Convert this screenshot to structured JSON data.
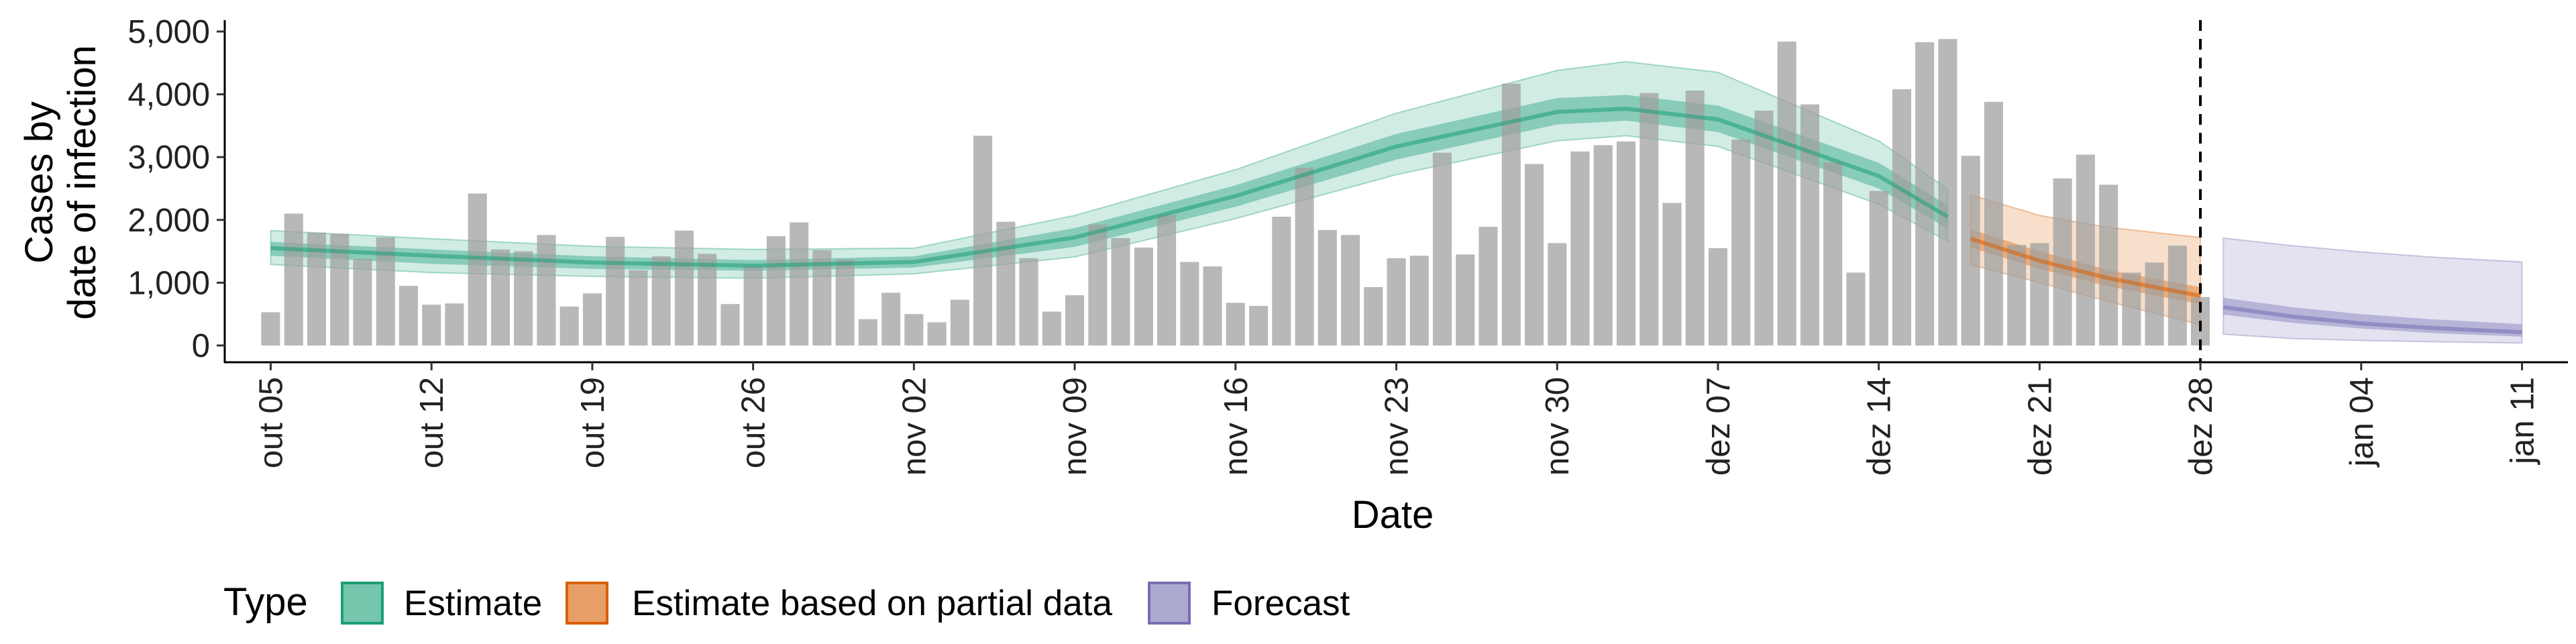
{
  "chart_data": {
    "type": "bar",
    "ylabel_lines": [
      "Cases by",
      "date of infection"
    ],
    "xlabel": "Date",
    "ylim": [
      0,
      5000
    ],
    "yticks": [
      0,
      1000,
      2000,
      3000,
      4000,
      5000
    ],
    "ytick_labels": [
      "0",
      "1,000",
      "2,000",
      "3,000",
      "4,000",
      "5,000"
    ],
    "xlim": [
      "2020-10-03",
      "2021-01-13"
    ],
    "xticks": [
      "2020-10-05",
      "2020-10-12",
      "2020-10-19",
      "2020-10-26",
      "2020-11-02",
      "2020-11-09",
      "2020-11-16",
      "2020-11-23",
      "2020-11-30",
      "2020-12-07",
      "2020-12-14",
      "2020-12-21",
      "2020-12-28",
      "2021-01-04",
      "2021-01-11"
    ],
    "xtick_labels": [
      "out 05",
      "out 12",
      "out 19",
      "out 26",
      "nov 02",
      "nov 09",
      "nov 16",
      "nov 23",
      "nov 30",
      "dez 07",
      "dez 14",
      "dez 21",
      "dez 28",
      "jan 04",
      "jan 11"
    ],
    "vline_date": "2020-12-28",
    "bars": {
      "start_date": "2020-10-05",
      "values": [
        530,
        2100,
        1800,
        1780,
        1380,
        1720,
        950,
        650,
        670,
        2420,
        1530,
        1500,
        1760,
        620,
        830,
        1730,
        1200,
        1420,
        1830,
        1460,
        660,
        1260,
        1740,
        1960,
        1520,
        1370,
        420,
        840,
        500,
        370,
        730,
        3340,
        1970,
        1390,
        540,
        800,
        1930,
        1710,
        1560,
        2080,
        1330,
        1260,
        680,
        630,
        2050,
        2830,
        1840,
        1760,
        930,
        1390,
        1430,
        3070,
        1450,
        1890,
        4170,
        2890,
        1630,
        3090,
        3190,
        3250,
        4020,
        2270,
        4060,
        1550,
        3280,
        3740,
        4840,
        3840,
        2920,
        1160,
        2460,
        4080,
        4830,
        4880,
        3020,
        3880,
        1600,
        1630,
        2660,
        3040,
        2560,
        1160,
        1320,
        1590,
        770
      ]
    },
    "series": [
      {
        "name": "Estimate",
        "color": "#1b9e77",
        "x": [
          "2020-10-05",
          "2020-10-12",
          "2020-10-19",
          "2020-10-26",
          "2020-11-02",
          "2020-11-09",
          "2020-11-16",
          "2020-11-23",
          "2020-11-30",
          "2020-12-03",
          "2020-12-07",
          "2020-12-14",
          "2020-12-17"
        ],
        "median": [
          1550,
          1430,
          1320,
          1270,
          1330,
          1720,
          2380,
          3170,
          3720,
          3770,
          3600,
          2700,
          2050
        ],
        "inner_lower": [
          1430,
          1300,
          1220,
          1190,
          1240,
          1570,
          2210,
          2960,
          3520,
          3580,
          3400,
          2500,
          1860
        ],
        "inner_upper": [
          1650,
          1530,
          1420,
          1360,
          1420,
          1870,
          2550,
          3370,
          3940,
          3990,
          3820,
          2910,
          2230
        ],
        "outer_lower": [
          1290,
          1160,
          1100,
          1070,
          1140,
          1410,
          2020,
          2720,
          3260,
          3340,
          3170,
          2250,
          1660
        ],
        "outer_upper": [
          1830,
          1700,
          1580,
          1530,
          1550,
          2070,
          2800,
          3700,
          4380,
          4520,
          4350,
          3260,
          2490
        ]
      },
      {
        "name": "Estimate based on partial data",
        "color": "#d95f02",
        "x": [
          "2020-12-18",
          "2020-12-21",
          "2020-12-24",
          "2020-12-28"
        ],
        "median": [
          1700,
          1350,
          1070,
          790
        ],
        "inner_lower": [
          1560,
          1220,
          940,
          660
        ],
        "inner_upper": [
          1850,
          1500,
          1200,
          930
        ],
        "outer_lower": [
          1290,
          1000,
          700,
          330
        ],
        "outer_upper": [
          2400,
          2070,
          1880,
          1720
        ]
      },
      {
        "name": "Forecast",
        "color": "#7570b3",
        "x": [
          "2020-12-29",
          "2021-01-01",
          "2021-01-04",
          "2021-01-07",
          "2021-01-11"
        ],
        "median": [
          610,
          460,
          350,
          280,
          210
        ],
        "inner_lower": [
          490,
          360,
          270,
          200,
          140
        ],
        "inner_upper": [
          760,
          610,
          500,
          420,
          340
        ],
        "outer_lower": [
          180,
          110,
          80,
          60,
          40
        ],
        "outer_upper": [
          1710,
          1590,
          1490,
          1410,
          1330
        ]
      }
    ],
    "legend": {
      "title": "Type",
      "position": "bottom",
      "items": [
        {
          "label": "Estimate",
          "color": "#1b9e77"
        },
        {
          "label": "Estimate based on partial data",
          "color": "#d95f02"
        },
        {
          "label": "Forecast",
          "color": "#7570b3"
        }
      ]
    },
    "bar_color": "#a0a0a0",
    "grid": false
  }
}
